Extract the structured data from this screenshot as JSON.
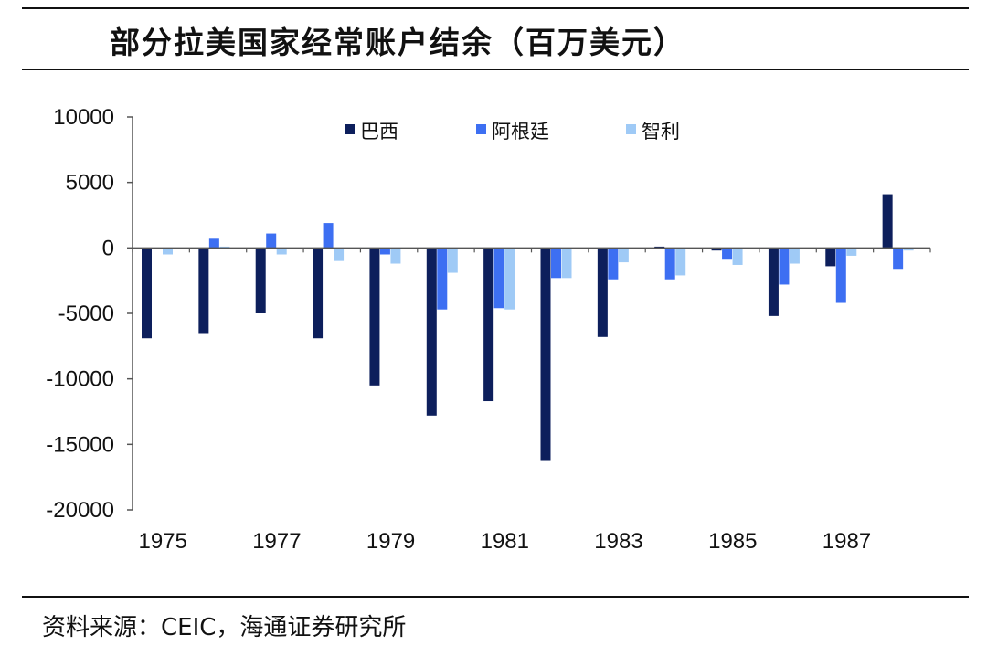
{
  "title": "部分拉美国家经常账户结余（百万美元）",
  "source": "资料来源：CEIC，海通证券研究所",
  "colors": {
    "brazil": "#0d1f5c",
    "argentina": "#3d6ff2",
    "chile": "#9fcaf6",
    "axis": "#555555",
    "text": "#111111"
  },
  "chart_data": {
    "type": "bar",
    "title": "部分拉美国家经常账户结余（百万美元）",
    "categories": [
      "1975",
      "1976",
      "1977",
      "1978",
      "1979",
      "1980",
      "1981",
      "1982",
      "1983",
      "1984",
      "1985",
      "1986",
      "1987",
      "1988"
    ],
    "x_tick_labels": [
      "1975",
      "1977",
      "1979",
      "1981",
      "1983",
      "1985",
      "1987"
    ],
    "y_ticks": [
      "10000",
      "5000",
      "0",
      "-5000",
      "-10000",
      "-15000",
      "-20000"
    ],
    "ylim": [
      -20000,
      10000
    ],
    "grid": false,
    "legend_position": "top-center",
    "series": [
      {
        "name": "巴西",
        "values": [
          -6900,
          -6500,
          -5000,
          -6900,
          -10500,
          -12800,
          -11700,
          -16200,
          -6800,
          100,
          -200,
          -5200,
          -1400,
          4100
        ]
      },
      {
        "name": "阿根廷",
        "values": [
          0,
          700,
          1100,
          1900,
          -500,
          -4700,
          -4600,
          -2300,
          -2400,
          -2400,
          -900,
          -2800,
          -4200,
          -1600
        ]
      },
      {
        "name": "智利",
        "values": [
          -500,
          100,
          -500,
          -1000,
          -1200,
          -1900,
          -4700,
          -2300,
          -1100,
          -2100,
          -1300,
          -1200,
          -600,
          -200
        ]
      }
    ],
    "xlabel": "",
    "ylabel": ""
  }
}
